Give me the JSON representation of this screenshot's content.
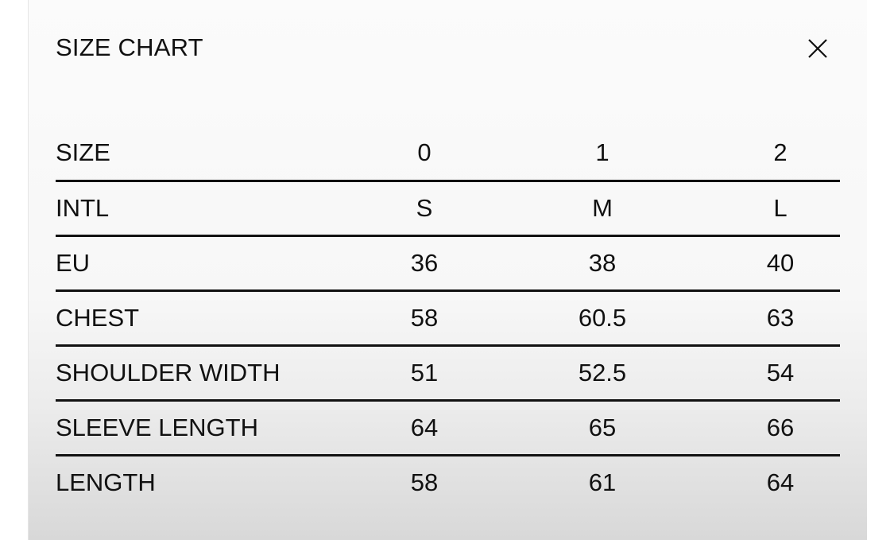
{
  "dialog": {
    "title": "SIZE CHART",
    "close_icon": "close-x-icon"
  },
  "table": {
    "rows": [
      {
        "label": "SIZE",
        "values": [
          "0",
          "1",
          "2"
        ]
      },
      {
        "label": "INTL",
        "values": [
          "S",
          "M",
          "L"
        ]
      },
      {
        "label": "EU",
        "values": [
          "36",
          "38",
          "40"
        ]
      },
      {
        "label": "CHEST",
        "values": [
          "58",
          "60.5",
          "63"
        ]
      },
      {
        "label": "SHOULDER WIDTH",
        "values": [
          "51",
          "52.5",
          "54"
        ]
      },
      {
        "label": "SLEEVE LENGTH",
        "values": [
          "64",
          "65",
          "66"
        ]
      },
      {
        "label": "LENGTH",
        "values": [
          "58",
          "61",
          "64"
        ]
      }
    ]
  }
}
